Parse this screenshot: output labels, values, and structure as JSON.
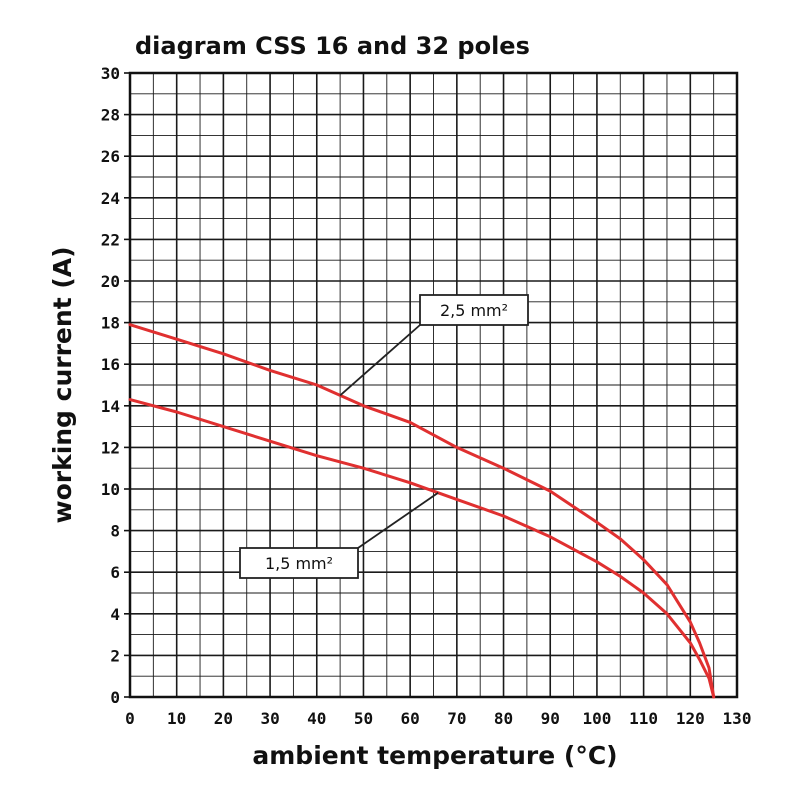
{
  "chart_data": {
    "type": "line",
    "title": "diagram CSS 16 and 32 poles",
    "xlabel": "ambient temperature (°C)",
    "ylabel": "working current (A)",
    "xlim": [
      0,
      130
    ],
    "ylim": [
      0,
      30
    ],
    "x_ticks": [
      0,
      10,
      20,
      30,
      40,
      50,
      60,
      70,
      80,
      90,
      100,
      110,
      120,
      130
    ],
    "y_ticks": [
      0,
      2,
      4,
      6,
      8,
      10,
      12,
      14,
      16,
      18,
      20,
      22,
      24,
      26,
      28,
      30
    ],
    "grid": true,
    "series": [
      {
        "name": "2,5 mm²",
        "color": "#e03030",
        "x": [
          0,
          10,
          20,
          30,
          40,
          50,
          60,
          70,
          80,
          90,
          100,
          105,
          110,
          115,
          120,
          122,
          124,
          125
        ],
        "y": [
          17.9,
          17.2,
          16.5,
          15.7,
          15.0,
          14.0,
          13.2,
          12.0,
          11.0,
          9.9,
          8.4,
          7.6,
          6.6,
          5.4,
          3.6,
          2.6,
          1.4,
          0
        ]
      },
      {
        "name": "1,5 mm²",
        "color": "#e03030",
        "x": [
          0,
          10,
          20,
          30,
          40,
          50,
          60,
          70,
          80,
          90,
          100,
          105,
          110,
          115,
          120,
          122,
          124,
          125
        ],
        "y": [
          14.3,
          13.7,
          13.0,
          12.3,
          11.6,
          11.0,
          10.3,
          9.5,
          8.7,
          7.7,
          6.5,
          5.8,
          5.0,
          4.0,
          2.6,
          1.8,
          0.9,
          0
        ]
      }
    ],
    "annotations": [
      {
        "text": "2,5 mm²",
        "series": 0,
        "point_x": 45
      },
      {
        "text": "1,5 mm²",
        "series": 1,
        "point_x": 66
      }
    ]
  }
}
